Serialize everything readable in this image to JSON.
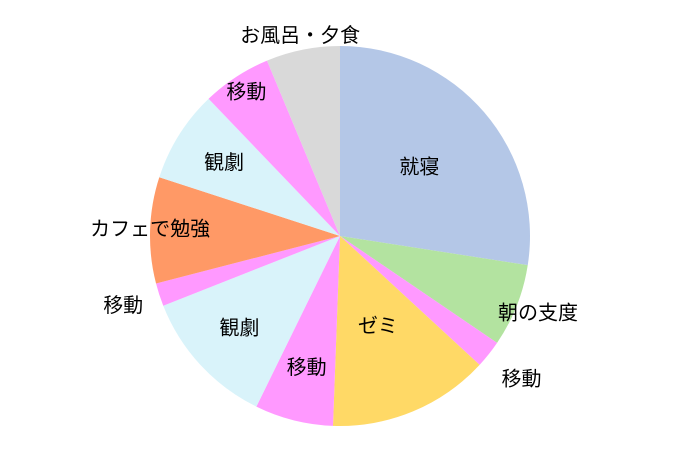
{
  "chart_data": {
    "type": "pie",
    "start_angle_deg": 0,
    "direction": "clockwise",
    "slices": [
      {
        "label": "就寝",
        "value": 7.0,
        "color": "#b4c7e7"
      },
      {
        "label": "朝の支度",
        "value": 1.8,
        "color": "#b3e3a0"
      },
      {
        "label": "移動",
        "value": 0.6,
        "color": "#ff99ff"
      },
      {
        "label": "ゼミ",
        "value": 3.5,
        "color": "#ffd966"
      },
      {
        "label": "移動",
        "value": 1.7,
        "color": "#ff99ff"
      },
      {
        "label": "観劇",
        "value": 3.0,
        "color": "#d9f3fa"
      },
      {
        "label": "移動",
        "value": 0.5,
        "color": "#ff99ff"
      },
      {
        "label": "カフェで勉強",
        "value": 2.3,
        "color": "#ff9966"
      },
      {
        "label": "観劇",
        "value": 2.0,
        "color": "#d9f3fa"
      },
      {
        "label": "移動",
        "value": 1.5,
        "color": "#ff99ff"
      },
      {
        "label": "お風呂・夕食",
        "value": 1.6,
        "color": "#d9d9d9"
      }
    ]
  }
}
